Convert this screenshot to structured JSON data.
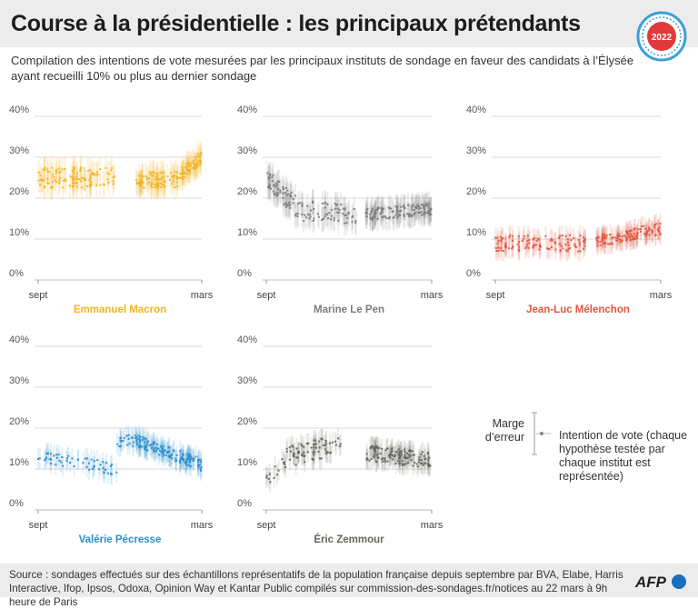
{
  "header": {
    "title": "Course à la présidentielle : les principaux prétendants",
    "subtitle": "Compilation des intentions de vote mesurées par les principaux instituts de sondage en faveur des candidats à l’Élysée ayant recueilli 10% ou plus au dernier sondage",
    "badge_year": "2022"
  },
  "legend": {
    "margin_label": "Marge d’erreur",
    "intention_label": "Intention de vote (chaque hypothèse testée par chaque institut est représentée)"
  },
  "footer": {
    "source": "Source : sondages effectués sur des échantillons représentatifs de la population française depuis septembre par BVA, Elabe, Harris Interactive, Ifop, Ipsos, Odoxa, Opinion Way et Kantar Public compilés sur commission-des-sondages.fr/notices au 22 mars à 9h heure de Paris",
    "logo": "AFP"
  },
  "colors": {
    "macron": "#f2b51c",
    "lepen": "#7d7d7d",
    "melenchon": "#e0573f",
    "pecresse": "#2b8fce",
    "zemmour": "#66665c",
    "grid": "#d9d9d9",
    "badge": "#e23a3a",
    "badge_ring": "#3a9fd6"
  },
  "chart_data": [
    {
      "type": "scatter",
      "candidate": "Emmanuel Macron",
      "color_key": "macron",
      "x_labels": [
        "sept",
        "mars"
      ],
      "y_ticks": [
        "0%",
        "10%",
        "20%",
        "30%",
        "40%"
      ],
      "ylim": [
        0,
        40
      ],
      "error_margin": 3,
      "segments": [
        {
          "x_from": 0.0,
          "x_to": 0.48,
          "from": 25,
          "to": 25,
          "spread": 5,
          "density": 110
        },
        {
          "x_from": 0.6,
          "x_to": 0.88,
          "from": 24.5,
          "to": 24.5,
          "spread": 4,
          "density": 90
        },
        {
          "x_from": 0.88,
          "x_to": 1.0,
          "from": 26,
          "to": 30,
          "spread": 3,
          "density": 55
        }
      ]
    },
    {
      "type": "scatter",
      "candidate": "Marine Le Pen",
      "color_key": "lepen",
      "x_labels": [
        "sept",
        "mars"
      ],
      "y_ticks": [
        "0%",
        "10%",
        "20%",
        "30%",
        "40%"
      ],
      "ylim": [
        0,
        40
      ],
      "error_margin": 3,
      "segments": [
        {
          "x_from": 0.0,
          "x_to": 0.18,
          "from": 25,
          "to": 18,
          "spread": 5,
          "density": 60
        },
        {
          "x_from": 0.18,
          "x_to": 0.55,
          "from": 17,
          "to": 16,
          "spread": 5,
          "density": 70
        },
        {
          "x_from": 0.6,
          "x_to": 1.0,
          "from": 16,
          "to": 17.5,
          "spread": 3,
          "density": 130
        }
      ]
    },
    {
      "type": "scatter",
      "candidate": "Jean-Luc Mélenchon",
      "color_key": "melenchon",
      "x_labels": [
        "sept",
        "mars"
      ],
      "y_ticks": [
        "0%",
        "10%",
        "20%",
        "30%",
        "40%"
      ],
      "ylim": [
        0,
        40
      ],
      "error_margin": 2.5,
      "segments": [
        {
          "x_from": 0.0,
          "x_to": 0.55,
          "from": 9,
          "to": 9,
          "spread": 4,
          "density": 110
        },
        {
          "x_from": 0.6,
          "x_to": 1.0,
          "from": 9.5,
          "to": 12.5,
          "spread": 3,
          "density": 120
        }
      ]
    },
    {
      "type": "scatter",
      "candidate": "Valérie Pécresse",
      "color_key": "pecresse",
      "x_labels": [
        "sept",
        "mars"
      ],
      "y_ticks": [
        "0%",
        "10%",
        "20%",
        "30%",
        "40%"
      ],
      "ylim": [
        0,
        40
      ],
      "error_margin": 2.5,
      "segments": [
        {
          "x_from": 0.0,
          "x_to": 0.48,
          "from": 13,
          "to": 10,
          "spread": 3,
          "density": 55
        },
        {
          "x_from": 0.48,
          "x_to": 0.6,
          "from": 17,
          "to": 17,
          "spread": 3,
          "density": 20
        },
        {
          "x_from": 0.6,
          "x_to": 1.0,
          "from": 17,
          "to": 11,
          "spread": 3,
          "density": 140
        }
      ]
    },
    {
      "type": "scatter",
      "candidate": "Éric Zemmour",
      "color_key": "zemmour",
      "x_labels": [
        "sept",
        "mars"
      ],
      "y_ticks": [
        "0%",
        "10%",
        "20%",
        "30%",
        "40%"
      ],
      "ylim": [
        0,
        40
      ],
      "error_margin": 2.5,
      "segments": [
        {
          "x_from": 0.0,
          "x_to": 0.12,
          "from": 7,
          "to": 12,
          "spread": 3,
          "density": 14
        },
        {
          "x_from": 0.12,
          "x_to": 0.45,
          "from": 13,
          "to": 16,
          "spread": 5,
          "density": 70
        },
        {
          "x_from": 0.6,
          "x_to": 1.0,
          "from": 14,
          "to": 12,
          "spread": 4,
          "density": 130
        }
      ]
    }
  ]
}
